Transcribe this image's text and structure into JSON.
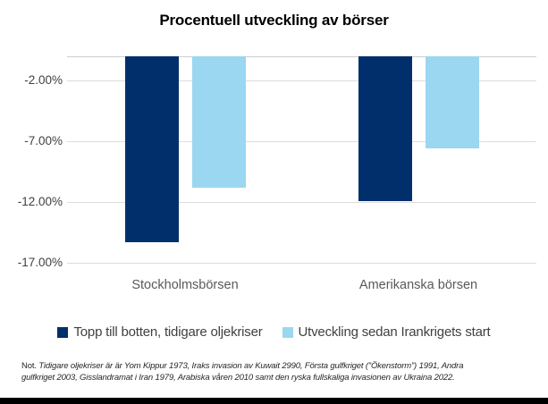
{
  "colors": {
    "dark_blue": "#002F6C",
    "light_blue": "#9BD7F0",
    "gridline": "#DCDCDC",
    "title_text": "#000000",
    "axis_text": "#404040",
    "category_text": "#595959",
    "bottom_bar": "#000000"
  },
  "chart_data": {
    "type": "bar",
    "title": "Procentuell utveckling av börser",
    "orientation": "vertical",
    "categories": [
      "Stockholmsbörsen",
      "Amerikanska börsen"
    ],
    "series": [
      {
        "name": "Topp till botten, tidigare oljekriser",
        "color": "#002F6C",
        "values": [
          -15.3,
          -11.9
        ]
      },
      {
        "name": "Utveckling sedan Irankrigets start",
        "color": "#9BD7F0",
        "values": [
          -10.8,
          -7.6
        ]
      }
    ],
    "baseline_value": 0,
    "ylim": [
      -17.5,
      0
    ],
    "yticks": [
      {
        "value": -2,
        "label": "-2.00%"
      },
      {
        "value": -7,
        "label": "-7.00%"
      },
      {
        "value": -12,
        "label": "-12.00%"
      },
      {
        "value": -17,
        "label": "-17.00%"
      }
    ],
    "grid": true,
    "legend_position": "bottom"
  },
  "footnote": {
    "prefix": "Not.",
    "line1_rest": " Tidigare oljekriser är är Yom Kippur 1973, Iraks invasion av Kuwait 2990, Första gulfkriget (”Ökenstorm”) 1991, Andra",
    "line2": "gulfkriget 2003, Gisslandramat i Iran 1979, Arabiska våren 2010 samt den ryska fullskaliga invasionen av Ukraina 2022."
  }
}
